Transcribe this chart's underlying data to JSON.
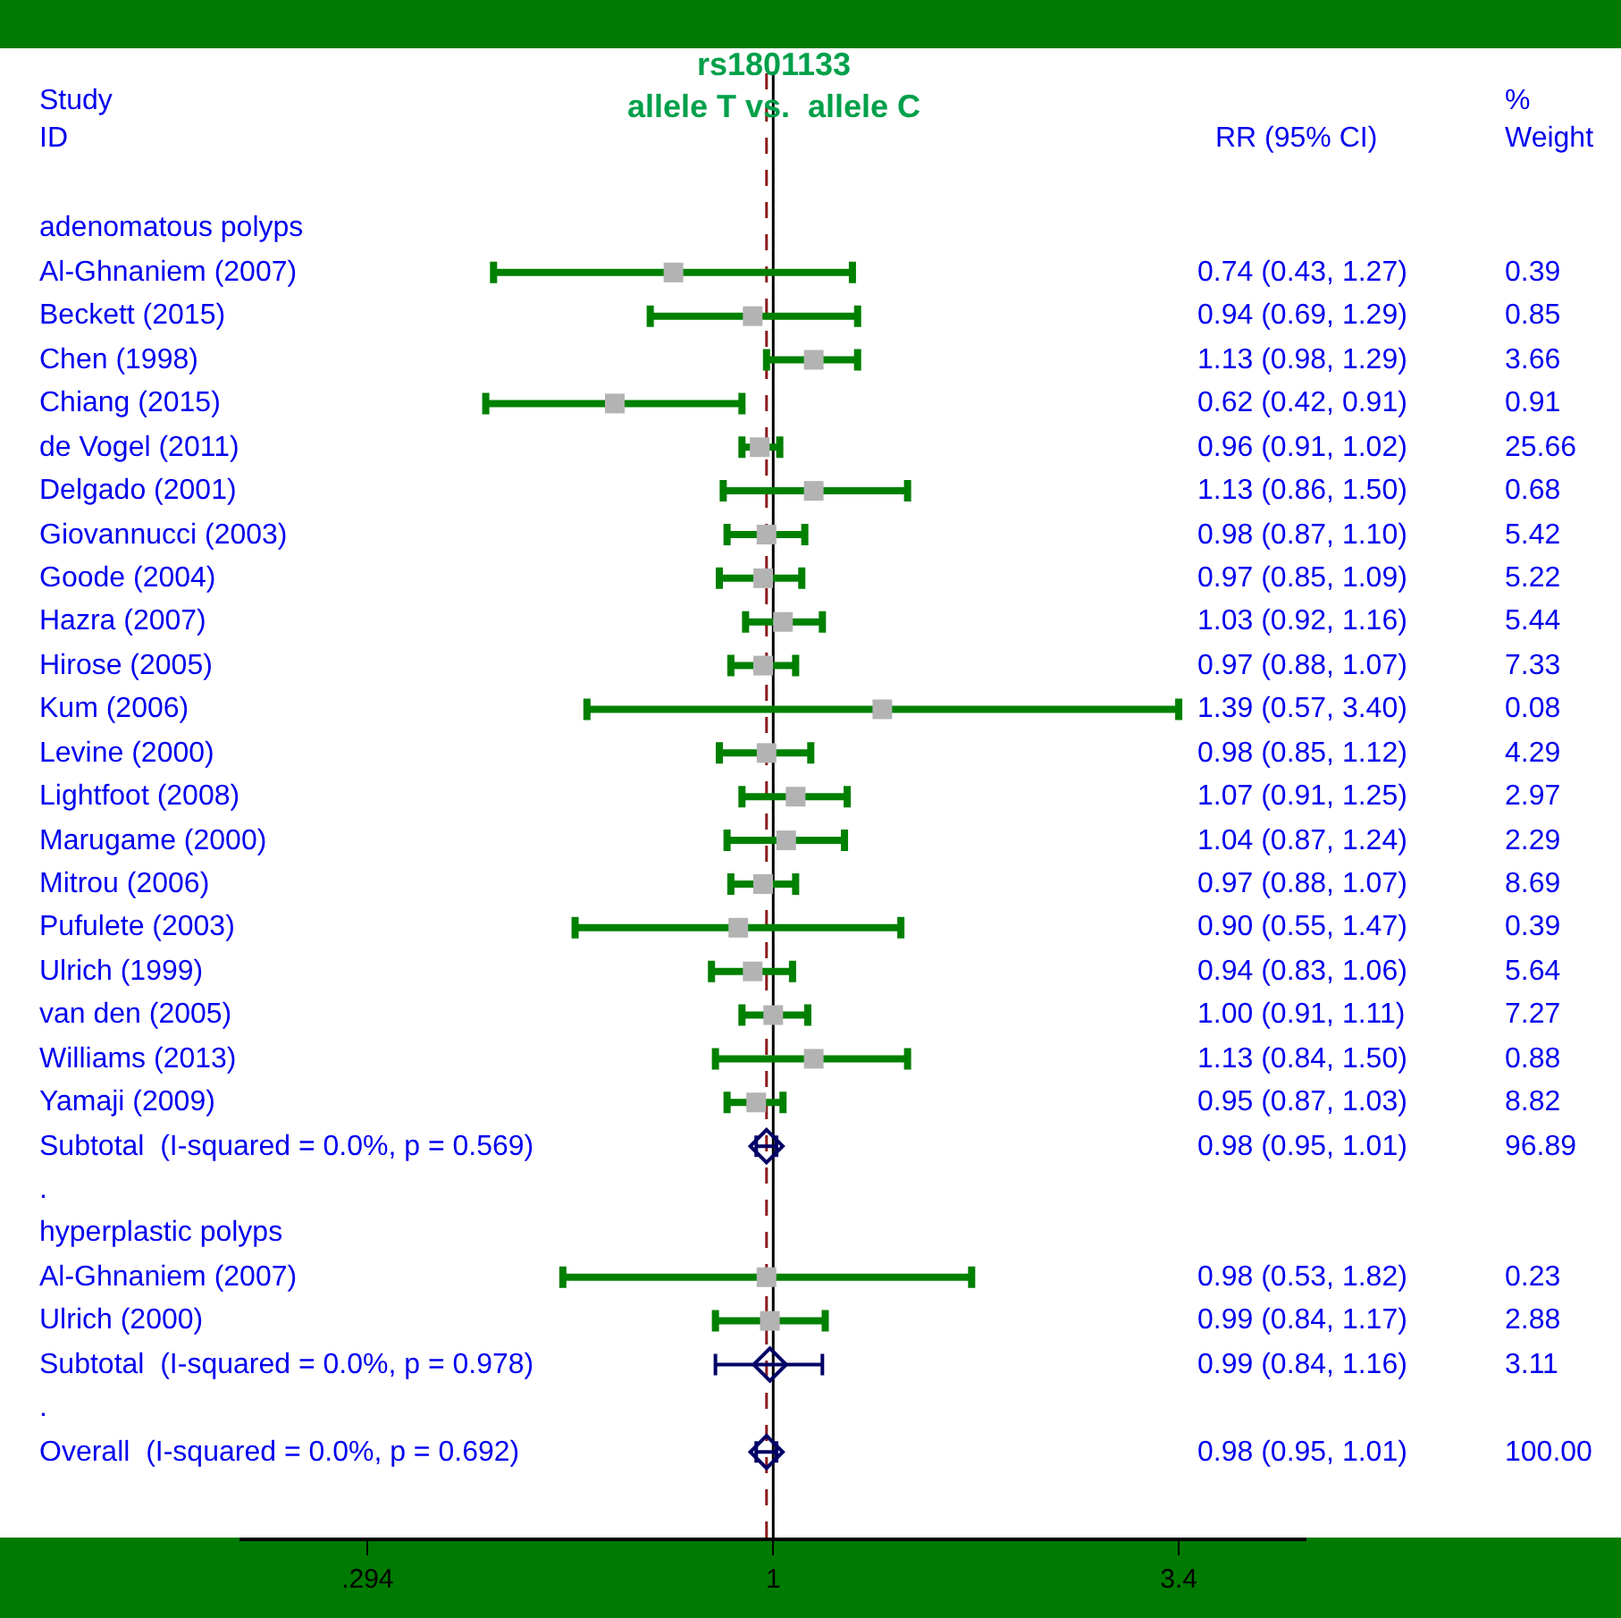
{
  "chart_data": {
    "type": "scatter",
    "title": "rs1801133\nallele T vs.  allele C",
    "ylabel": "Study\nID",
    "orientation": "horizontal",
    "annotations": [
      "RR (95% CI)",
      "%\nWeight",
      "0.74 (0.43, 1.27)",
      "0.39",
      "0.94 (0.69, 1.29)",
      "0.85",
      "1.13 (0.98, 1.29)",
      "3.66",
      "0.62 (0.42, 0.91)",
      "0.91",
      "0.96 (0.91, 1.02)",
      "25.66",
      "1.13 (0.86, 1.50)",
      "0.68",
      "0.98 (0.87, 1.10)",
      "5.42",
      "0.97 (0.85, 1.09)",
      "5.22",
      "1.03 (0.92, 1.16)",
      "5.44",
      "0.97 (0.88, 1.07)",
      "7.33",
      "1.39 (0.57, 3.40)",
      "0.08",
      "0.98 (0.85, 1.12)",
      "4.29",
      "1.07 (0.91, 1.25)",
      "2.97",
      "1.04 (0.87, 1.24)",
      "2.29",
      "0.97 (0.88, 1.07)",
      "8.69",
      "0.90 (0.55, 1.47)",
      "0.39",
      "0.94 (0.83, 1.06)",
      "5.64",
      "1.00 (0.91, 1.11)",
      "7.27",
      "1.13 (0.84, 1.50)",
      "0.88",
      "0.95 (0.87, 1.03)",
      "8.82",
      "0.98 (0.95, 1.01)",
      "96.89",
      "0.98 (0.53, 1.82)",
      "0.23",
      "0.99 (0.84, 1.17)",
      "2.88",
      "0.99 (0.84, 1.16)",
      "3.11",
      "0.98 (0.95, 1.01)",
      "100.00"
    ],
    "categories": [
      "adenomatous polyps",
      "Al-Ghnaniem (2007)",
      "Beckett (2015)",
      "Chen (1998)",
      "Chiang (2015)",
      "de Vogel (2011)",
      "Delgado (2001)",
      "Giovannucci (2003)",
      "Goode (2004)",
      "Hazra (2007)",
      "Hirose (2005)",
      "Kum (2006)",
      "Levine (2000)",
      "Lightfoot (2008)",
      "Marugame (2000)",
      "Mitrou (2006)",
      "Pufulete (2003)",
      "Ulrich (1999)",
      "van den (2005)",
      "Williams (2013)",
      "Yamaji (2009)",
      "Subtotal  (I-squared = 0.0%, p = 0.569)",
      ".",
      "hyperplastic polyps",
      "Al-Ghnaniem (2007)",
      "Ulrich (2000)",
      "Subtotal  (I-squared = 0.0%, p = 0.978)",
      ".",
      "Overall  (I-squared = 0.0%, p = 0.692)"
    ],
    "series": [
      {
        "marker": "square",
        "color": "#b3b3b3",
        "values": [
          null,
          0.74,
          0.94,
          1.13,
          0.62,
          0.96,
          1.13,
          0.98,
          0.97,
          1.03,
          0.97,
          1.39,
          0.98,
          1.07,
          1.04,
          0.97,
          0.9,
          0.94,
          1.0,
          1.13,
          0.95,
          null,
          null,
          null,
          0.98,
          0.99,
          null,
          null,
          null
        ],
        "errors": [
          null,
          [
            0.43,
            1.27
          ],
          [
            0.69,
            1.29
          ],
          [
            0.98,
            1.29
          ],
          [
            0.42,
            0.91
          ],
          [
            0.91,
            1.02
          ],
          [
            0.86,
            1.5
          ],
          [
            0.87,
            1.1
          ],
          [
            0.85,
            1.09
          ],
          [
            0.92,
            1.16
          ],
          [
            0.88,
            1.07
          ],
          [
            0.57,
            3.4
          ],
          [
            0.85,
            1.12
          ],
          [
            0.91,
            1.25
          ],
          [
            0.87,
            1.24
          ],
          [
            0.88,
            1.07
          ],
          [
            0.55,
            1.47
          ],
          [
            0.83,
            1.06
          ],
          [
            0.91,
            1.11
          ],
          [
            0.84,
            1.5
          ],
          [
            0.87,
            1.03
          ],
          null,
          null,
          null,
          [
            0.53,
            1.82
          ],
          [
            0.84,
            1.17
          ],
          null,
          null,
          null
        ]
      },
      {
        "marker": "diamond",
        "color": "#000066",
        "values": [
          null,
          null,
          null,
          null,
          null,
          null,
          null,
          null,
          null,
          null,
          null,
          null,
          null,
          null,
          null,
          null,
          null,
          null,
          null,
          null,
          null,
          0.98,
          null,
          null,
          null,
          null,
          0.99,
          null,
          0.98
        ],
        "errors": [
          null,
          null,
          null,
          null,
          null,
          null,
          null,
          null,
          null,
          null,
          null,
          null,
          null,
          null,
          null,
          null,
          null,
          null,
          null,
          null,
          null,
          [
            0.95,
            1.01
          ],
          null,
          null,
          null,
          null,
          [
            0.84,
            1.16
          ],
          null,
          [
            0.95,
            1.01
          ]
        ]
      }
    ],
    "log": "x",
    "xlim": [
      0.2,
      5
    ],
    "xticks": [
      {
        "value": 0.294,
        "label": ".294"
      },
      {
        "value": 1,
        "label": "1"
      },
      {
        "value": 3.4,
        "label": "3.4"
      }
    ],
    "ref_lines": [
      {
        "axis": "x",
        "value": 1,
        "color": "#000000",
        "line_style": "solid"
      },
      {
        "axis": "x",
        "value": 0.98,
        "color": "#8b1a1a",
        "line_style": "dashed"
      }
    ]
  }
}
